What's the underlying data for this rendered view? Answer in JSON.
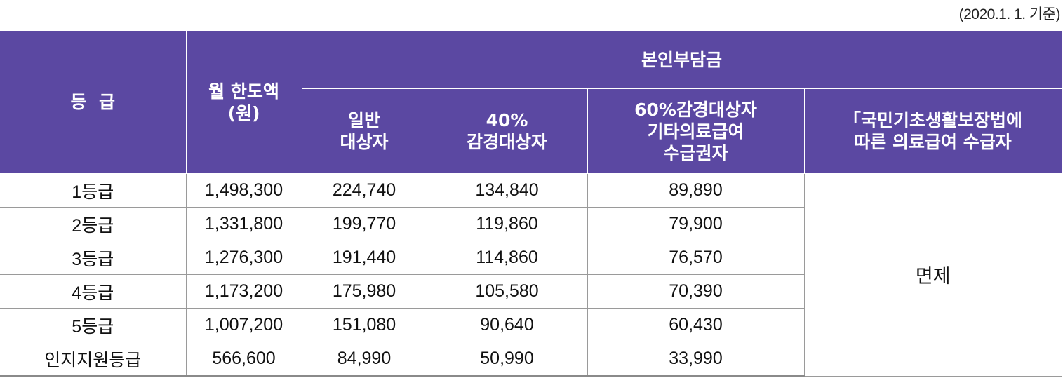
{
  "date_note": "(2020.1. 1. 기준)",
  "header": {
    "grade": "등  급",
    "monthly_limit": [
      "월 한도액",
      "(원)"
    ],
    "copay_group": "본인부담금",
    "general": [
      "일반",
      "대상자"
    ],
    "reduced_40": [
      "40%",
      "감경대상자"
    ],
    "reduced_60": [
      "60%감경대상자",
      "기타의료급여",
      "수급권자"
    ],
    "basic_livelihood": [
      "「국민기초생활보장법에",
      "따른 의료급여 수급자"
    ]
  },
  "rows": [
    {
      "grade": "1등급",
      "limit": "1,498,300",
      "general": "224,740",
      "r40": "134,840",
      "r60": "89,890"
    },
    {
      "grade": "2등급",
      "limit": "1,331,800",
      "general": "199,770",
      "r40": "119,860",
      "r60": "79,900"
    },
    {
      "grade": "3등급",
      "limit": "1,276,300",
      "general": "191,440",
      "r40": "114,860",
      "r60": "76,570"
    },
    {
      "grade": "4등급",
      "limit": "1,173,200",
      "general": "175,980",
      "r40": "105,580",
      "r60": "70,390"
    },
    {
      "grade": "5등급",
      "limit": "1,007,200",
      "general": "151,080",
      "r40": "90,640",
      "r60": "60,430"
    },
    {
      "grade": "인지지원등급",
      "limit": "566,600",
      "general": "84,990",
      "r40": "50,990",
      "r60": "33,990"
    }
  ],
  "exempt_label": "면제",
  "colors": {
    "header_bg": "#5b48a2",
    "header_text": "#ffffff",
    "border": "#9a9a9a"
  }
}
